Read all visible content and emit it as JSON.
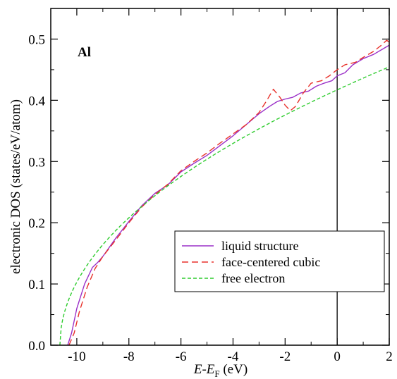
{
  "chart_data": {
    "type": "line",
    "annotation": "Al",
    "xlabel_parts": {
      "e1": "E",
      "dash": "-",
      "e2": "E",
      "sub": "F",
      "unit": " (eV)"
    },
    "ylabel": "electronic DOS (states/eV/atom)",
    "xlim": [
      -11,
      2
    ],
    "ylim": [
      0.0,
      0.55
    ],
    "x_ticks": [
      -10,
      -8,
      -6,
      -4,
      -2,
      0,
      2
    ],
    "x_tick_labels": [
      "-10",
      "-8",
      "-6",
      "-4",
      "-2",
      "0",
      "2"
    ],
    "y_ticks": [
      0.0,
      0.1,
      0.2,
      0.3,
      0.4,
      0.5
    ],
    "y_tick_labels": [
      "0.0",
      "0.1",
      "0.2",
      "0.3",
      "0.4",
      "0.5"
    ],
    "vertical_line_x": 0,
    "legend_position": "lower-right",
    "series": [
      {
        "name": "liquid structure",
        "color": "#9b30c8",
        "style": "solid",
        "x": [
          -10.35,
          -10.2,
          -10.0,
          -9.7,
          -9.4,
          -9.2,
          -9.0,
          -8.5,
          -8.0,
          -7.5,
          -7.0,
          -6.5,
          -6.0,
          -5.5,
          -5.0,
          -4.5,
          -4.0,
          -3.5,
          -3.0,
          -2.6,
          -2.3,
          -2.0,
          -1.7,
          -1.4,
          -1.1,
          -0.8,
          -0.5,
          -0.2,
          0.0,
          0.3,
          0.6,
          1.0,
          1.4,
          1.8,
          2.0
        ],
        "y": [
          0.0,
          0.02,
          0.06,
          0.1,
          0.127,
          0.135,
          0.145,
          0.175,
          0.202,
          0.228,
          0.248,
          0.262,
          0.283,
          0.297,
          0.31,
          0.326,
          0.342,
          0.36,
          0.378,
          0.39,
          0.398,
          0.402,
          0.405,
          0.412,
          0.415,
          0.423,
          0.428,
          0.432,
          0.44,
          0.445,
          0.458,
          0.468,
          0.475,
          0.485,
          0.49
        ]
      },
      {
        "name": "face-centered cubic",
        "color": "#e8312b",
        "style": "dashed",
        "x": [
          -10.3,
          -10.1,
          -9.9,
          -9.6,
          -9.3,
          -9.0,
          -8.5,
          -8.0,
          -7.5,
          -7.0,
          -6.5,
          -6.0,
          -5.5,
          -5.0,
          -4.5,
          -4.0,
          -3.5,
          -3.0,
          -2.7,
          -2.45,
          -2.2,
          -2.0,
          -1.8,
          -1.6,
          -1.3,
          -1.0,
          -0.6,
          -0.3,
          0.0,
          0.3,
          0.7,
          1.0,
          1.4,
          1.7,
          1.9,
          2.0
        ],
        "y": [
          0.0,
          0.02,
          0.055,
          0.095,
          0.125,
          0.145,
          0.172,
          0.2,
          0.226,
          0.246,
          0.263,
          0.285,
          0.3,
          0.314,
          0.33,
          0.345,
          0.36,
          0.38,
          0.4,
          0.418,
          0.405,
          0.392,
          0.383,
          0.39,
          0.412,
          0.428,
          0.432,
          0.44,
          0.45,
          0.458,
          0.462,
          0.47,
          0.48,
          0.49,
          0.498,
          0.495
        ]
      },
      {
        "name": "free electron",
        "color": "#2ecc2e",
        "style": "short-dashed",
        "band_bottom": -10.65,
        "coefficient": 0.1278,
        "x": [
          -10.65,
          -10.5,
          -10.2,
          -9.8,
          -9.2,
          -8.5,
          -8.0,
          -7.0,
          -6.0,
          -5.0,
          -4.0,
          -3.0,
          -2.0,
          -1.0,
          0.0,
          1.0,
          2.0
        ],
        "y": [
          0.0,
          0.0495,
          0.0857,
          0.1178,
          0.1569,
          0.1929,
          0.2081,
          0.244,
          0.2755,
          0.3037,
          0.3295,
          0.3533,
          0.3756,
          0.3966,
          0.4165,
          0.4355,
          0.4537
        ]
      }
    ]
  }
}
